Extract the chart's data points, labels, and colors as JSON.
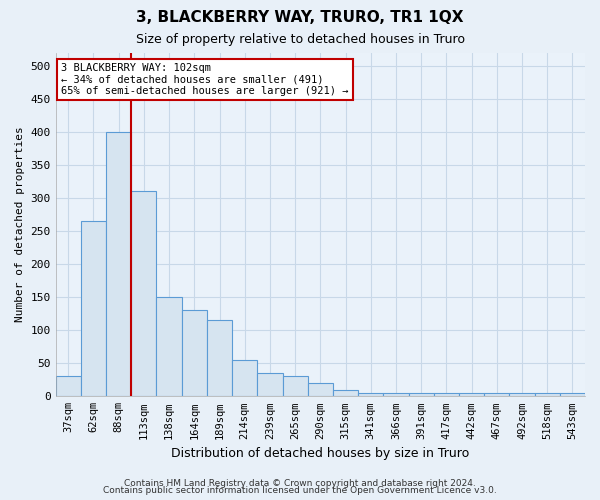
{
  "title": "3, BLACKBERRY WAY, TRURO, TR1 1QX",
  "subtitle": "Size of property relative to detached houses in Truro",
  "xlabel": "Distribution of detached houses by size in Truro",
  "ylabel": "Number of detached properties",
  "bins": [
    "37sqm",
    "62sqm",
    "88sqm",
    "113sqm",
    "138sqm",
    "164sqm",
    "189sqm",
    "214sqm",
    "239sqm",
    "265sqm",
    "290sqm",
    "315sqm",
    "341sqm",
    "366sqm",
    "391sqm",
    "417sqm",
    "442sqm",
    "467sqm",
    "492sqm",
    "518sqm",
    "543sqm"
  ],
  "values": [
    30,
    265,
    400,
    310,
    150,
    130,
    115,
    55,
    35,
    30,
    20,
    10,
    5,
    5,
    5,
    5,
    5,
    5,
    5,
    5,
    5
  ],
  "bar_color": "#d6e4f0",
  "bar_edge_color": "#5b9bd5",
  "grid_color": "#c8d8e8",
  "property_line_x": 2.5,
  "property_line_color": "#c00000",
  "annotation_text": "3 BLACKBERRY WAY: 102sqm\n← 34% of detached houses are smaller (491)\n65% of semi-detached houses are larger (921) →",
  "annotation_box_color": "#ffffff",
  "annotation_box_edge": "#c00000",
  "ylim": [
    0,
    520
  ],
  "yticks": [
    0,
    50,
    100,
    150,
    200,
    250,
    300,
    350,
    400,
    450,
    500
  ],
  "footer1": "Contains HM Land Registry data © Crown copyright and database right 2024.",
  "footer2": "Contains public sector information licensed under the Open Government Licence v3.0.",
  "bg_color": "#e8f0f8",
  "plot_bg_color": "#eaf2fa"
}
